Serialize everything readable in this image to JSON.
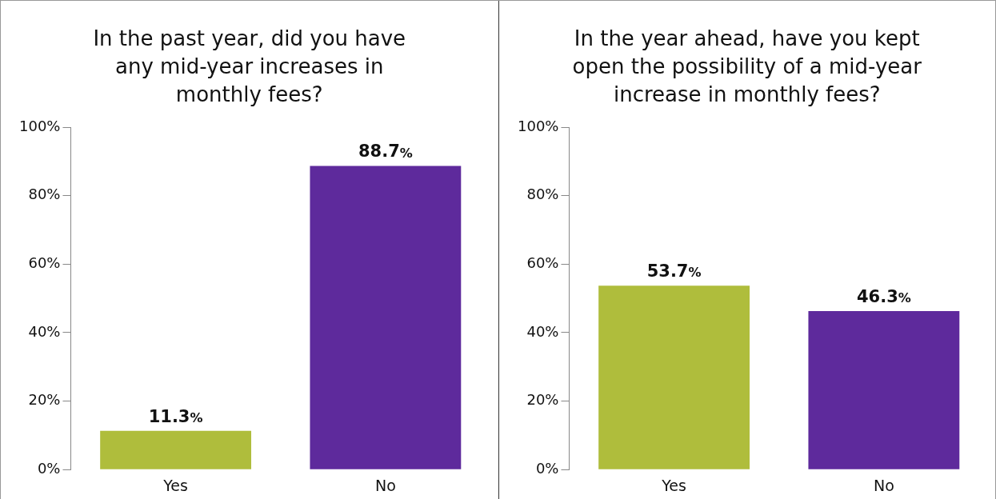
{
  "chart_data": [
    {
      "type": "bar",
      "title": "In the past year, did you have any mid-year increases in monthly fees?",
      "categories": [
        "Yes",
        "No"
      ],
      "values": [
        11.3,
        88.7
      ],
      "colors": [
        "#afbd3c",
        "#5e2a9c"
      ],
      "value_labels": [
        "11.3%",
        "88.7%"
      ],
      "ylim": [
        0,
        100
      ],
      "yticks": [
        {
          "value": 0,
          "label": "0%"
        },
        {
          "value": 20,
          "label": "20%"
        },
        {
          "value": 40,
          "label": "40%"
        },
        {
          "value": 60,
          "label": "60%"
        },
        {
          "value": 80,
          "label": "80%"
        },
        {
          "value": 100,
          "label": "100%"
        }
      ]
    },
    {
      "type": "bar",
      "title": "In the year ahead, have you kept open the possibility of a mid-year increase in monthly fees?",
      "categories": [
        "Yes",
        "No"
      ],
      "values": [
        53.7,
        46.3
      ],
      "colors": [
        "#afbd3c",
        "#5e2a9c"
      ],
      "value_labels": [
        "53.7%",
        "46.3%"
      ],
      "ylim": [
        0,
        100
      ],
      "yticks": [
        {
          "value": 0,
          "label": "0%"
        },
        {
          "value": 20,
          "label": "20%"
        },
        {
          "value": 40,
          "label": "40%"
        },
        {
          "value": 60,
          "label": "60%"
        },
        {
          "value": 80,
          "label": "80%"
        },
        {
          "value": 100,
          "label": "100%"
        }
      ]
    }
  ]
}
